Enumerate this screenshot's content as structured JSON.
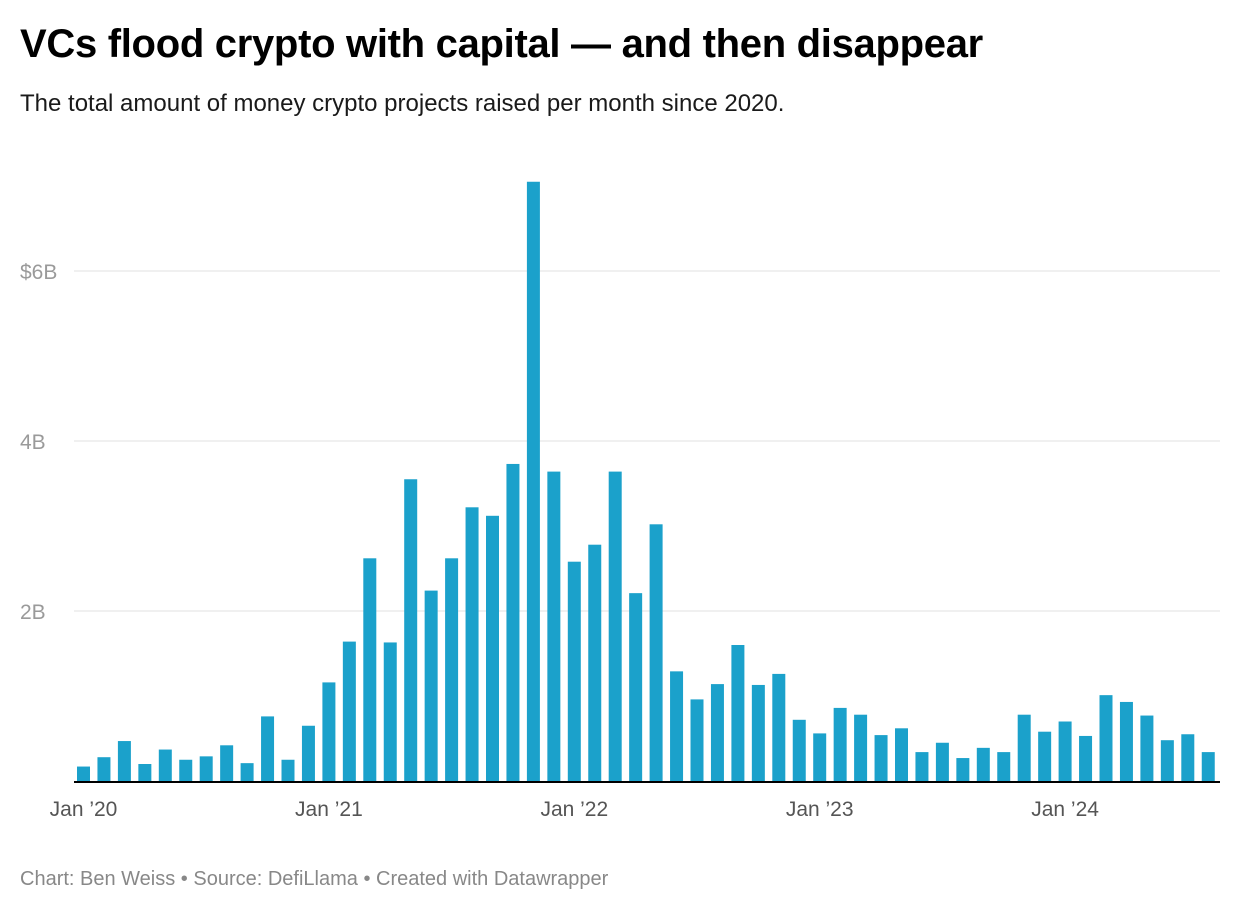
{
  "title": "VCs flood crypto with capital — and then disappear",
  "subtitle": "The total amount of money crypto projects raised per month since 2020.",
  "footer": "Chart: Ben Weiss • Source: DefiLlama • Created with Datawrapper",
  "chart_data": {
    "type": "bar",
    "title": "VCs flood crypto with capital — and then disappear",
    "xlabel": "",
    "ylabel": "",
    "ylim": [
      0,
      7.1
    ],
    "unit": "billions USD",
    "grid": true,
    "bar_color": "#1ba1cb",
    "y_ticks": [
      {
        "value": 2,
        "label": "2B"
      },
      {
        "value": 4,
        "label": "4B"
      },
      {
        "value": 6,
        "label": "$6B"
      }
    ],
    "x_ticks": [
      {
        "index": 0,
        "label": "Jan ’20"
      },
      {
        "index": 12,
        "label": "Jan ’21"
      },
      {
        "index": 24,
        "label": "Jan ’22"
      },
      {
        "index": 36,
        "label": "Jan ’23"
      },
      {
        "index": 48,
        "label": "Jan ’24"
      }
    ],
    "categories": [
      "2020-01",
      "2020-02",
      "2020-03",
      "2020-04",
      "2020-05",
      "2020-06",
      "2020-07",
      "2020-08",
      "2020-09",
      "2020-10",
      "2020-11",
      "2020-12",
      "2021-01",
      "2021-02",
      "2021-03",
      "2021-04",
      "2021-05",
      "2021-06",
      "2021-07",
      "2021-08",
      "2021-09",
      "2021-10",
      "2021-11",
      "2021-12",
      "2022-01",
      "2022-02",
      "2022-03",
      "2022-04",
      "2022-05",
      "2022-06",
      "2022-07",
      "2022-08",
      "2022-09",
      "2022-10",
      "2022-11",
      "2022-12",
      "2023-01",
      "2023-02",
      "2023-03",
      "2023-04",
      "2023-05",
      "2023-06",
      "2023-07",
      "2023-08",
      "2023-09",
      "2023-10",
      "2023-11",
      "2023-12",
      "2024-01",
      "2024-02",
      "2024-03",
      "2024-04",
      "2024-05",
      "2024-06",
      "2024-07",
      "2024-08"
    ],
    "values": [
      0.17,
      0.28,
      0.47,
      0.2,
      0.37,
      0.25,
      0.29,
      0.42,
      0.21,
      0.76,
      0.25,
      0.65,
      1.16,
      1.64,
      2.62,
      1.63,
      3.55,
      2.24,
      2.62,
      3.22,
      3.12,
      3.73,
      7.05,
      3.64,
      2.58,
      2.78,
      3.64,
      2.21,
      3.02,
      1.29,
      0.96,
      1.14,
      1.6,
      1.13,
      1.26,
      0.72,
      0.56,
      0.86,
      0.78,
      0.54,
      0.62,
      0.34,
      0.45,
      0.27,
      0.39,
      0.34,
      0.78,
      0.58,
      0.7,
      0.53,
      1.01,
      0.93,
      0.77,
      0.48,
      0.55,
      0.34
    ]
  }
}
